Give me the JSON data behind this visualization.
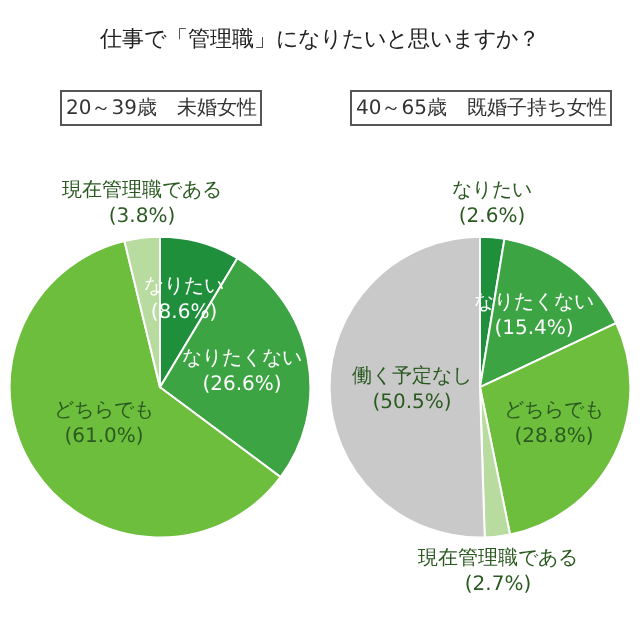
{
  "chart_data": [
    {
      "type": "pie",
      "title": "仕事で「管理職」になりたいと思いますか？",
      "subtitle": "20～39歳　未婚女性",
      "categories": [
        "なりたい",
        "なりたくない",
        "どちらでも",
        "現在管理職である"
      ],
      "values": [
        8.6,
        26.6,
        61.0,
        3.8
      ],
      "value_labels": [
        "(8.6%)",
        "(26.6%)",
        "(61.0%)",
        "(3.8%)"
      ],
      "colors": [
        "#1f8f3c",
        "#3da443",
        "#6dbe3c",
        "#b8dca0"
      ]
    },
    {
      "type": "pie",
      "subtitle": "40～65歳　既婚子持ち女性",
      "categories": [
        "なりたい",
        "なりたくない",
        "どちらでも",
        "現在管理職である",
        "働く予定なし"
      ],
      "values": [
        2.6,
        15.4,
        28.8,
        2.7,
        50.5
      ],
      "value_labels": [
        "(2.6%)",
        "(15.4%)",
        "(28.8%)",
        "(2.7%)",
        "(50.5%)"
      ],
      "colors": [
        "#1f8f3c",
        "#3da443",
        "#6dbe3c",
        "#b8dca0",
        "#c9c9c9"
      ]
    }
  ]
}
